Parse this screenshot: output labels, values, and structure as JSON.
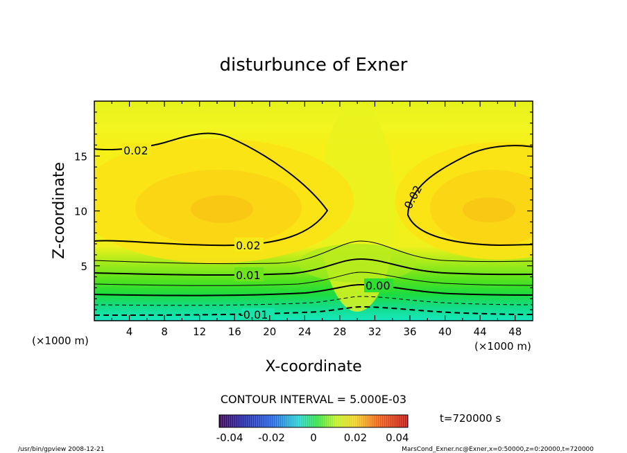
{
  "chart_data": {
    "type": "heatmap",
    "title": "disturbunce of Exner",
    "xlabel": "X-coordinate",
    "ylabel": "Z-coordinate",
    "x_unit_left": "(×1000 m)",
    "x_unit_right": "(×1000 m)",
    "xlim": [
      0,
      50
    ],
    "ylim": [
      0,
      20
    ],
    "x_ticks": [
      "4",
      "8",
      "12",
      "16",
      "20",
      "24",
      "28",
      "32",
      "36",
      "40",
      "44",
      "48"
    ],
    "y_ticks": [
      "5",
      "10",
      "15"
    ],
    "contour_interval_text": "CONTOUR INTERVAL = 5.000E-03",
    "contour_labels": [
      "0.02",
      "0.02",
      "0.02",
      "0.01",
      "0.00",
      "-0.01"
    ],
    "colorbar": {
      "range": [
        -0.045,
        0.045
      ],
      "tick_labels": [
        "-0.04",
        "-0.02",
        "0",
        "0.02",
        "0.04"
      ]
    },
    "time_text": "t=720000 s",
    "footer_left": "/usr/bin/gpview   2008-12-21",
    "footer_right": "MarsCond_Exner.nc@Exner,x=0:50000,z=0:20000,t=720000"
  }
}
